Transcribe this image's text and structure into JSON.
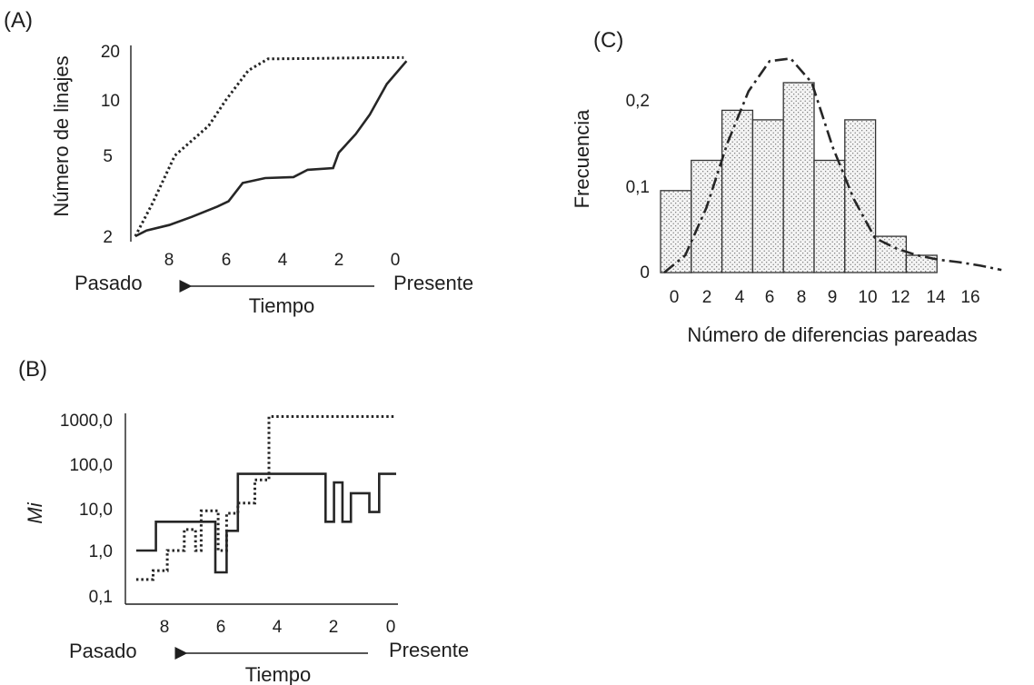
{
  "chart_data": [
    {
      "panel": "(A)",
      "type": "line",
      "ylabel": "Número de linajes",
      "yticks": [
        "20",
        "10",
        "5",
        "2"
      ],
      "xticks": [
        "8",
        "6",
        "4",
        "2",
        "0"
      ],
      "time_axis": {
        "left": "Pasado",
        "right": "Presente",
        "label": "Tiempo"
      },
      "scale_y": "log",
      "series": [
        {
          "style": "dotted",
          "points": [
            [
              9.2,
              2
            ],
            [
              8.6,
              3
            ],
            [
              7.8,
              5.5
            ],
            [
              6.6,
              8
            ],
            [
              6.0,
              11
            ],
            [
              5.2,
              16
            ],
            [
              4.5,
              18.5
            ],
            [
              3.0,
              18.6
            ],
            [
              0.6,
              18.8
            ],
            [
              -0.3,
              18.8
            ]
          ]
        },
        {
          "style": "solid",
          "points": [
            [
              9.2,
              2
            ],
            [
              8.8,
              2.15
            ],
            [
              8.0,
              2.3
            ],
            [
              7.2,
              2.55
            ],
            [
              6.3,
              2.9
            ],
            [
              5.9,
              3.1
            ],
            [
              5.4,
              3.9
            ],
            [
              4.6,
              4.15
            ],
            [
              3.6,
              4.2
            ],
            [
              3.1,
              4.6
            ],
            [
              2.2,
              4.7
            ],
            [
              2.0,
              5.7
            ],
            [
              1.4,
              7.2
            ],
            [
              0.9,
              9.2
            ],
            [
              0.3,
              13.5
            ],
            [
              -0.4,
              18
            ]
          ]
        }
      ]
    },
    {
      "panel": "(B)",
      "type": "line",
      "ylabel": "Mi",
      "yticks": [
        "1000,0",
        "100,0",
        "10,0",
        "1,0",
        "0,1"
      ],
      "xticks": [
        "8",
        "6",
        "4",
        "2",
        "0"
      ],
      "time_axis": {
        "left": "Pasado",
        "right": "Presente",
        "label": "Tiempo"
      },
      "scale_y": "log",
      "series": [
        {
          "style": "solid",
          "points": [
            [
              9.2,
              1
            ],
            [
              8.5,
              1
            ],
            [
              8.5,
              4.5
            ],
            [
              6.4,
              4.5
            ],
            [
              6.4,
              0.32
            ],
            [
              6.0,
              0.32
            ],
            [
              6.0,
              2.8
            ],
            [
              5.6,
              2.8
            ],
            [
              5.6,
              55
            ],
            [
              2.5,
              55
            ],
            [
              2.5,
              4.5
            ],
            [
              2.2,
              4.5
            ],
            [
              2.2,
              35
            ],
            [
              1.9,
              35
            ],
            [
              1.9,
              4.5
            ],
            [
              1.6,
              4.5
            ],
            [
              1.6,
              20
            ],
            [
              0.95,
              20
            ],
            [
              0.95,
              7.5
            ],
            [
              0.6,
              7.5
            ],
            [
              0.6,
              55
            ],
            [
              0,
              55
            ]
          ]
        },
        {
          "style": "dotted",
          "points": [
            [
              9.2,
              0.22
            ],
            [
              8.6,
              0.22
            ],
            [
              8.6,
              0.35
            ],
            [
              8.1,
              0.35
            ],
            [
              8.1,
              1
            ],
            [
              7.5,
              1
            ],
            [
              7.5,
              3
            ],
            [
              7.1,
              3
            ],
            [
              7.1,
              1
            ],
            [
              6.9,
              1
            ],
            [
              6.9,
              8
            ],
            [
              6.3,
              8
            ],
            [
              6.3,
              1
            ],
            [
              6.0,
              1
            ],
            [
              6.0,
              7
            ],
            [
              5.6,
              7
            ],
            [
              5.6,
              12
            ],
            [
              5.0,
              12
            ],
            [
              5.0,
              40
            ],
            [
              4.5,
              40
            ],
            [
              4.5,
              1100
            ],
            [
              0,
              1100
            ]
          ]
        }
      ]
    },
    {
      "panel": "(C)",
      "type": "bar",
      "ylabel": "Frecuencia",
      "xlabel": "Número de diferencias pareadas",
      "yticks": [
        "0,2",
        "0,1",
        "0"
      ],
      "xticks": [
        "0",
        "2",
        "4",
        "6",
        "8",
        "9",
        "10",
        "12",
        "14",
        "16"
      ],
      "ylim": [
        0,
        0.25
      ],
      "values": [
        0.095,
        0.13,
        0.188,
        0.177,
        0.22,
        0.13,
        0.177,
        0.042,
        0.02
      ],
      "curve": [
        [
          0,
          0
        ],
        [
          1,
          0.02
        ],
        [
          2,
          0.075
        ],
        [
          3,
          0.15
        ],
        [
          4,
          0.21
        ],
        [
          5,
          0.245
        ],
        [
          6,
          0.248
        ],
        [
          7,
          0.22
        ],
        [
          8,
          0.145
        ],
        [
          9,
          0.085
        ],
        [
          10,
          0.04
        ],
        [
          11,
          0.028
        ],
        [
          12,
          0.02
        ],
        [
          13,
          0.015
        ],
        [
          14,
          0.012
        ],
        [
          15,
          0.008
        ],
        [
          16,
          0.003
        ]
      ]
    }
  ]
}
